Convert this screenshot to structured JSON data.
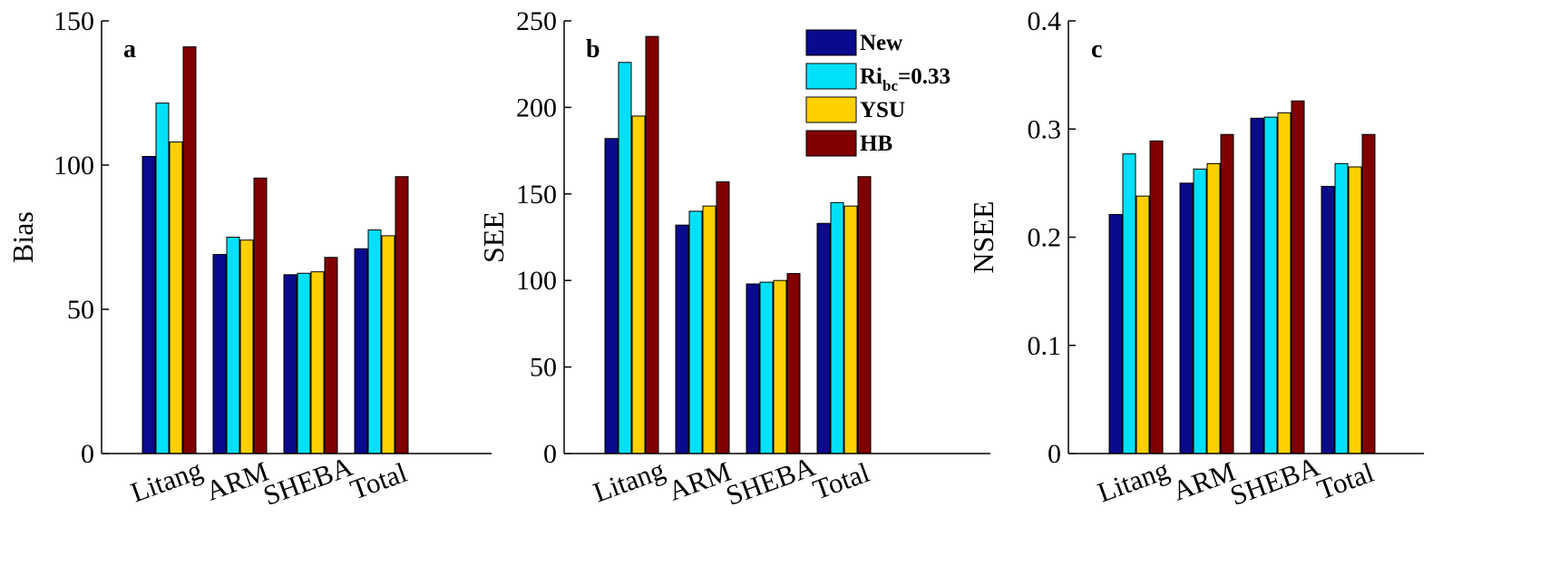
{
  "colors": {
    "New": "#0a0a8c",
    "Ri": "#00e0f8",
    "YSU": "#ffd000",
    "HB": "#800000"
  },
  "legend": {
    "items": [
      {
        "key": "New",
        "label": "New"
      },
      {
        "key": "Ri",
        "label_main": "Ri",
        "label_sub": "bc",
        "label_rest": "=0.33"
      },
      {
        "key": "YSU",
        "label": "YSU"
      },
      {
        "key": "HB",
        "label": "HB"
      }
    ]
  },
  "chart_data": [
    {
      "type": "bar",
      "panel_label": "a",
      "ylabel": "Bias",
      "ylim": [
        0,
        150
      ],
      "yticks": [
        "0",
        "50",
        "100",
        "150"
      ],
      "categories": [
        "Litang",
        "ARM",
        "SHEBA",
        "Total"
      ],
      "series": [
        {
          "name": "New",
          "values": [
            103,
            69,
            62,
            71
          ]
        },
        {
          "name": "Ri_bc=0.33",
          "values": [
            121.5,
            75,
            62.5,
            77.5
          ]
        },
        {
          "name": "YSU",
          "values": [
            108,
            74,
            63,
            75.5
          ]
        },
        {
          "name": "HB",
          "values": [
            141,
            95.5,
            68,
            96
          ]
        }
      ]
    },
    {
      "type": "bar",
      "panel_label": "b",
      "ylabel": "SEE",
      "ylim": [
        0,
        250
      ],
      "yticks": [
        "0",
        "50",
        "100",
        "150",
        "200",
        "250"
      ],
      "categories": [
        "Litang",
        "ARM",
        "SHEBA",
        "Total"
      ],
      "series": [
        {
          "name": "New",
          "values": [
            182,
            132,
            98,
            133
          ]
        },
        {
          "name": "Ri_bc=0.33",
          "values": [
            226,
            140,
            99,
            145
          ]
        },
        {
          "name": "YSU",
          "values": [
            195,
            143,
            100,
            143
          ]
        },
        {
          "name": "HB",
          "values": [
            241,
            157,
            104,
            160
          ]
        }
      ]
    },
    {
      "type": "bar",
      "panel_label": "c",
      "ylabel": "NSEE",
      "ylim": [
        0,
        0.4
      ],
      "yticks": [
        "0",
        "0.1",
        "0.2",
        "0.3",
        "0.4"
      ],
      "categories": [
        "Litang",
        "ARM",
        "SHEBA",
        "Total"
      ],
      "series": [
        {
          "name": "New",
          "values": [
            0.221,
            0.25,
            0.31,
            0.247
          ]
        },
        {
          "name": "Ri_bc=0.33",
          "values": [
            0.277,
            0.263,
            0.311,
            0.268
          ]
        },
        {
          "name": "YSU",
          "values": [
            0.238,
            0.268,
            0.315,
            0.265
          ]
        },
        {
          "name": "HB",
          "values": [
            0.289,
            0.295,
            0.326,
            0.295
          ]
        }
      ]
    }
  ]
}
